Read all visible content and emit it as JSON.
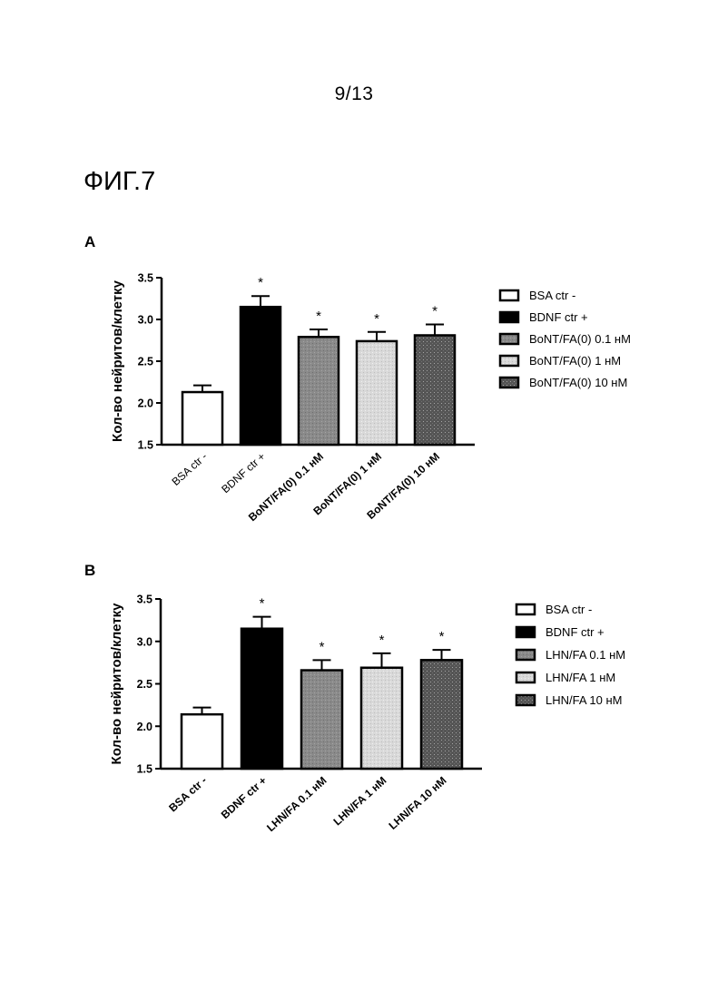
{
  "page_number": "9/13",
  "figure_title": "ФИГ.7",
  "panels": [
    {
      "label": "A"
    },
    {
      "label": "B"
    }
  ],
  "chart_data": [
    {
      "type": "bar",
      "panel": "A",
      "ylabel": "Кол-во нейритов/клетку",
      "ylim": [
        1.5,
        3.5
      ],
      "yticks": [
        "1.5",
        "2.0",
        "2.5",
        "3.0",
        "3.5"
      ],
      "categories": [
        "BSA ctr -",
        "BDNF ctr +",
        "BoNT/FA(0) 0.1 нМ",
        "BoNT/FA(0) 1 нМ",
        "BoNT/FA(0) 10 нМ"
      ],
      "values": [
        2.13,
        3.15,
        2.79,
        2.74,
        2.81
      ],
      "errors": [
        0.08,
        0.13,
        0.09,
        0.11,
        0.13
      ],
      "significance": [
        "",
        "*",
        "*",
        "*",
        "*"
      ],
      "fills": [
        "#ffffff",
        "#000000",
        "#8a8a8a",
        "#d9d9d9",
        "#555555"
      ],
      "legend": [
        "BSA ctr -",
        "BDNF ctr +",
        "BoNT/FA(0) 0.1 нМ",
        "BoNT/FA(0) 1 нМ",
        "BoNT/FA(0) 10 нМ"
      ],
      "legend_position": "right",
      "grid": false
    },
    {
      "type": "bar",
      "panel": "B",
      "ylabel": "Кол-во нейритов/клетку",
      "ylim": [
        1.5,
        3.5
      ],
      "yticks": [
        "1.5",
        "2.0",
        "2.5",
        "3.0",
        "3.5"
      ],
      "categories": [
        "BSA ctr -",
        "BDNF ctr +",
        "LHN/FA 0.1 нМ",
        "LHN/FA 1 нМ",
        "LHN/FA 10 нМ"
      ],
      "values": [
        2.14,
        3.15,
        2.66,
        2.69,
        2.78
      ],
      "errors": [
        0.08,
        0.14,
        0.12,
        0.17,
        0.12
      ],
      "significance": [
        "",
        "*",
        "*",
        "*",
        "*"
      ],
      "fills": [
        "#ffffff",
        "#000000",
        "#8a8a8a",
        "#d9d9d9",
        "#555555"
      ],
      "legend": [
        "BSA ctr -",
        "BDNF ctr +",
        "LHN/FA 0.1 нМ",
        "LHN/FA 1 нМ",
        "LHN/FA 10 нМ"
      ],
      "legend_position": "right",
      "grid": false
    }
  ]
}
